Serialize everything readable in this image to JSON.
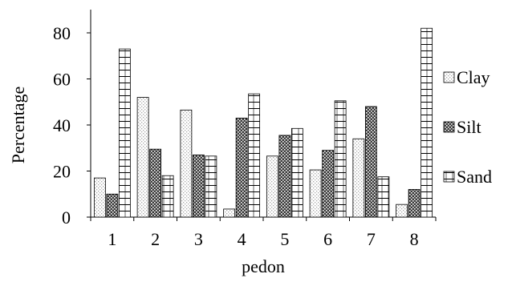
{
  "chart_data": {
    "type": "bar",
    "xlabel": "pedon",
    "ylabel": "Percentage",
    "categories": [
      "1",
      "2",
      "3",
      "4",
      "5",
      "6",
      "7",
      "8"
    ],
    "ylim": [
      0,
      90
    ],
    "yticks": [
      "0",
      "20",
      "40",
      "60",
      "80"
    ],
    "grid": false,
    "legend_position": "right",
    "series": [
      {
        "name": "Clay",
        "values": [
          17,
          52,
          46.5,
          3.5,
          26.5,
          20.5,
          34,
          5.5
        ],
        "pattern": "light-dots"
      },
      {
        "name": "Silt",
        "values": [
          10,
          29.5,
          27,
          43,
          35.5,
          29,
          48,
          12
        ],
        "pattern": "dark-checker"
      },
      {
        "name": "Sand",
        "values": [
          73,
          18,
          26.5,
          53.5,
          38.5,
          50.5,
          17.5,
          82
        ],
        "pattern": "brick"
      }
    ],
    "colors": {
      "axis": "#000000",
      "bar_outline": "#000000",
      "clay_dot": "#b0b0b0",
      "silt_fill": "#444444",
      "sand_line": "#000000"
    }
  }
}
